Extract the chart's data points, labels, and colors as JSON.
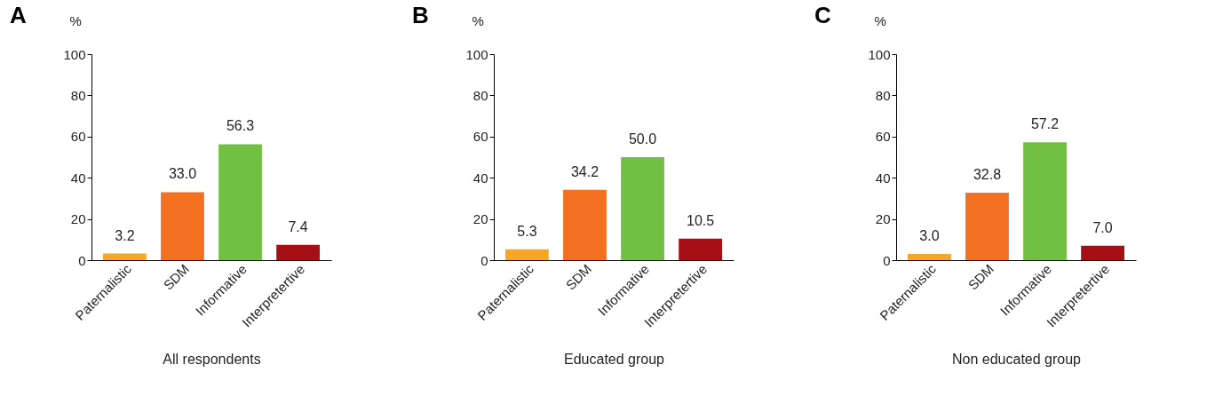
{
  "chart_data": [
    {
      "type": "bar",
      "title": "A",
      "ylabel": "%",
      "xlabel": "All respondents",
      "categories": [
        "Paternalistic",
        "SDM",
        "Informative",
        "Interpretertive"
      ],
      "values": [
        3.2,
        33.0,
        56.3,
        7.4
      ],
      "value_labels": [
        "3.2",
        "33.0",
        "56.3",
        "7.4"
      ],
      "colors": [
        "#f5a623",
        "#f37021",
        "#72c043",
        "#a50f15"
      ],
      "ylim": [
        0,
        100
      ],
      "yticks": [
        0,
        20,
        40,
        60,
        80,
        100
      ]
    },
    {
      "type": "bar",
      "title": "B",
      "ylabel": "%",
      "xlabel": "Educated group",
      "categories": [
        "Paternalistic",
        "SDM",
        "Informative",
        "Interpretertive"
      ],
      "values": [
        5.3,
        34.2,
        50.0,
        10.5
      ],
      "value_labels": [
        "5.3",
        "34.2",
        "50.0",
        "10.5"
      ],
      "colors": [
        "#f5a623",
        "#f37021",
        "#72c043",
        "#a50f15"
      ],
      "ylim": [
        0,
        100
      ],
      "yticks": [
        0,
        20,
        40,
        60,
        80,
        100
      ]
    },
    {
      "type": "bar",
      "title": "C",
      "ylabel": "%",
      "xlabel": "Non educated group",
      "categories": [
        "Paternalistic",
        "SDM",
        "Informative",
        "Interpretertive"
      ],
      "values": [
        3.0,
        32.8,
        57.2,
        7.0
      ],
      "value_labels": [
        "3.0",
        "32.8",
        "57.2",
        "7.0"
      ],
      "colors": [
        "#f5a623",
        "#f37021",
        "#72c043",
        "#a50f15"
      ],
      "ylim": [
        0,
        100
      ],
      "yticks": [
        0,
        20,
        40,
        60,
        80,
        100
      ]
    }
  ]
}
